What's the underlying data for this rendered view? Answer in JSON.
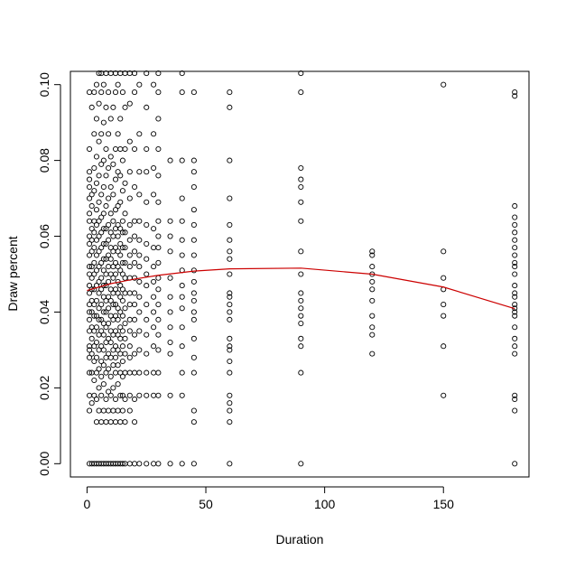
{
  "chart_data": {
    "type": "scatter",
    "title": "",
    "xlabel": "Duration",
    "ylabel": "Draw percent",
    "xlim": [
      -7,
      186
    ],
    "ylim": [
      -0.0035,
      0.1035
    ],
    "xticks": [
      0,
      50,
      100,
      150
    ],
    "yticks": [
      0.0,
      0.02,
      0.04,
      0.06,
      0.08,
      0.1
    ],
    "xtick_labels": [
      "0",
      "50",
      "100",
      "150"
    ],
    "ytick_labels": [
      "0.00",
      "0.02",
      "0.04",
      "0.06",
      "0.08",
      "0.10"
    ],
    "grid": false,
    "legend": "none",
    "points_color": "#000000",
    "trend_color": "#cc0000",
    "series": [
      {
        "kind": "points",
        "x_values": [
          1,
          2,
          3,
          4,
          5,
          6,
          7,
          8,
          9,
          10,
          11,
          12,
          13,
          14,
          15,
          16,
          18,
          20,
          22,
          25,
          28,
          30,
          35,
          40,
          45,
          60,
          90,
          120,
          150,
          180
        ],
        "x": [
          1,
          2,
          3,
          4,
          5,
          6,
          7,
          8,
          9,
          10,
          11,
          12,
          13,
          14,
          15,
          16,
          18,
          20,
          22,
          25,
          28,
          30,
          35,
          40,
          45,
          60,
          90,
          120,
          150,
          180
        ],
        "y_by_x": {
          "1": [
            0.0,
            0.014,
            0.018,
            0.024,
            0.028,
            0.03,
            0.031,
            0.035,
            0.038,
            0.04,
            0.042,
            0.045,
            0.047,
            0.05,
            0.052,
            0.055,
            0.058,
            0.06,
            0.064,
            0.066,
            0.07,
            0.073,
            0.075,
            0.077,
            0.083,
            0.098
          ],
          "2": [
            0.0,
            0.016,
            0.024,
            0.029,
            0.033,
            0.036,
            0.04,
            0.043,
            0.046,
            0.049,
            0.052,
            0.056,
            0.059,
            0.062,
            0.068,
            0.071,
            0.094
          ],
          "3": [
            0.0,
            0.018,
            0.022,
            0.027,
            0.031,
            0.035,
            0.039,
            0.042,
            0.046,
            0.05,
            0.053,
            0.057,
            0.061,
            0.064,
            0.072,
            0.078,
            0.087,
            0.098
          ],
          "4": [
            0.0,
            0.011,
            0.017,
            0.024,
            0.028,
            0.032,
            0.036,
            0.039,
            0.043,
            0.047,
            0.051,
            0.055,
            0.059,
            0.063,
            0.067,
            0.074,
            0.081,
            0.091,
            0.1
          ],
          "5": [
            0.0,
            0.014,
            0.02,
            0.025,
            0.03,
            0.034,
            0.038,
            0.041,
            0.045,
            0.048,
            0.052,
            0.056,
            0.06,
            0.064,
            0.069,
            0.076,
            0.085,
            0.095,
            0.103
          ],
          "6": [
            0.0,
            0.011,
            0.018,
            0.023,
            0.027,
            0.031,
            0.035,
            0.038,
            0.042,
            0.046,
            0.049,
            0.053,
            0.057,
            0.061,
            0.065,
            0.071,
            0.079,
            0.087,
            0.098,
            0.103
          ],
          "7": [
            0.0,
            0.014,
            0.021,
            0.026,
            0.03,
            0.034,
            0.037,
            0.04,
            0.044,
            0.047,
            0.051,
            0.054,
            0.058,
            0.062,
            0.066,
            0.073,
            0.08,
            0.09,
            0.1
          ],
          "8": [
            0.0,
            0.011,
            0.017,
            0.024,
            0.028,
            0.032,
            0.036,
            0.04,
            0.043,
            0.047,
            0.05,
            0.054,
            0.058,
            0.062,
            0.068,
            0.076,
            0.083,
            0.094,
            0.103
          ],
          "9": [
            0.0,
            0.014,
            0.019,
            0.025,
            0.029,
            0.033,
            0.037,
            0.041,
            0.044,
            0.048,
            0.052,
            0.055,
            0.059,
            0.063,
            0.07,
            0.078,
            0.087,
            0.098
          ],
          "10": [
            0.0,
            0.011,
            0.018,
            0.023,
            0.028,
            0.032,
            0.035,
            0.039,
            0.043,
            0.046,
            0.05,
            0.054,
            0.057,
            0.061,
            0.066,
            0.073,
            0.081,
            0.091,
            0.103
          ],
          "11": [
            0.0,
            0.014,
            0.02,
            0.026,
            0.03,
            0.034,
            0.038,
            0.042,
            0.045,
            0.049,
            0.052,
            0.056,
            0.06,
            0.064,
            0.071,
            0.079,
            0.094
          ],
          "12": [
            0.0,
            0.011,
            0.017,
            0.024,
            0.028,
            0.031,
            0.035,
            0.039,
            0.042,
            0.046,
            0.05,
            0.053,
            0.057,
            0.062,
            0.067,
            0.075,
            0.083,
            0.098,
            0.103
          ],
          "13": [
            0.0,
            0.014,
            0.021,
            0.026,
            0.03,
            0.034,
            0.038,
            0.041,
            0.045,
            0.048,
            0.052,
            0.056,
            0.06,
            0.063,
            0.068,
            0.077,
            0.087,
            0.1
          ],
          "14": [
            0.0,
            0.011,
            0.018,
            0.024,
            0.029,
            0.033,
            0.036,
            0.04,
            0.044,
            0.047,
            0.051,
            0.055,
            0.058,
            0.062,
            0.069,
            0.076,
            0.083,
            0.091,
            0.103
          ],
          "15": [
            0.0,
            0.014,
            0.018,
            0.023,
            0.027,
            0.031,
            0.035,
            0.039,
            0.043,
            0.046,
            0.05,
            0.053,
            0.057,
            0.061,
            0.064,
            0.072,
            0.08,
            0.098
          ],
          "16": [
            0.0,
            0.011,
            0.017,
            0.024,
            0.029,
            0.033,
            0.037,
            0.041,
            0.045,
            0.049,
            0.053,
            0.057,
            0.061,
            0.066,
            0.074,
            0.083,
            0.094,
            0.103
          ],
          "18": [
            0.0,
            0.014,
            0.018,
            0.024,
            0.028,
            0.031,
            0.035,
            0.038,
            0.042,
            0.045,
            0.049,
            0.052,
            0.055,
            0.059,
            0.063,
            0.07,
            0.077,
            0.085,
            0.095,
            0.103
          ],
          "20": [
            0.0,
            0.011,
            0.017,
            0.024,
            0.029,
            0.034,
            0.038,
            0.042,
            0.045,
            0.049,
            0.053,
            0.056,
            0.06,
            0.064,
            0.073,
            0.083,
            0.098,
            0.103
          ],
          "22": [
            0.0,
            0.018,
            0.024,
            0.03,
            0.035,
            0.04,
            0.044,
            0.048,
            0.052,
            0.055,
            0.059,
            0.064,
            0.071,
            0.077,
            0.087,
            0.1
          ],
          "25": [
            0.0,
            0.018,
            0.024,
            0.029,
            0.034,
            0.038,
            0.042,
            0.047,
            0.05,
            0.054,
            0.058,
            0.063,
            0.069,
            0.077,
            0.083,
            0.094,
            0.103
          ],
          "28": [
            0.0,
            0.018,
            0.024,
            0.031,
            0.036,
            0.04,
            0.044,
            0.048,
            0.052,
            0.057,
            0.062,
            0.071,
            0.078,
            0.087,
            0.1
          ],
          "30": [
            0.0,
            0.018,
            0.024,
            0.03,
            0.034,
            0.038,
            0.042,
            0.046,
            0.049,
            0.053,
            0.057,
            0.06,
            0.064,
            0.069,
            0.076,
            0.083,
            0.091,
            0.098,
            0.103
          ],
          "35": [
            0.0,
            0.018,
            0.029,
            0.032,
            0.036,
            0.04,
            0.044,
            0.049,
            0.056,
            0.06,
            0.064,
            0.08
          ],
          "40": [
            0.0,
            0.018,
            0.024,
            0.031,
            0.036,
            0.041,
            0.044,
            0.047,
            0.051,
            0.055,
            0.059,
            0.064,
            0.07,
            0.08,
            0.098,
            0.103
          ],
          "45": [
            0.0,
            0.011,
            0.014,
            0.024,
            0.028,
            0.033,
            0.038,
            0.04,
            0.043,
            0.045,
            0.048,
            0.051,
            0.055,
            0.059,
            0.063,
            0.067,
            0.073,
            0.077,
            0.08,
            0.098
          ],
          "60": [
            0.0,
            0.011,
            0.014,
            0.016,
            0.018,
            0.024,
            0.027,
            0.03,
            0.031,
            0.033,
            0.038,
            0.04,
            0.042,
            0.044,
            0.045,
            0.05,
            0.054,
            0.056,
            0.059,
            0.063,
            0.07,
            0.08,
            0.094,
            0.098
          ],
          "90": [
            0.0,
            0.024,
            0.031,
            0.033,
            0.037,
            0.039,
            0.041,
            0.043,
            0.045,
            0.05,
            0.056,
            0.064,
            0.069,
            0.073,
            0.075,
            0.078,
            0.098,
            0.103
          ],
          "120": [
            0.029,
            0.034,
            0.036,
            0.039,
            0.043,
            0.046,
            0.048,
            0.05,
            0.052,
            0.055,
            0.056
          ],
          "150": [
            0.018,
            0.031,
            0.039,
            0.042,
            0.046,
            0.049,
            0.056,
            0.1
          ],
          "180": [
            0.0,
            0.014,
            0.017,
            0.018,
            0.029,
            0.031,
            0.033,
            0.036,
            0.039,
            0.04,
            0.041,
            0.042,
            0.044,
            0.045,
            0.047,
            0.05,
            0.052,
            0.053,
            0.055,
            0.057,
            0.059,
            0.061,
            0.063,
            0.065,
            0.068,
            0.097,
            0.098
          ]
        }
      },
      {
        "kind": "line",
        "x": [
          0,
          10,
          20,
          30,
          45,
          60,
          90,
          120,
          150,
          180
        ],
        "y": [
          0.0457,
          0.0475,
          0.0487,
          0.0497,
          0.0508,
          0.0514,
          0.0516,
          0.05,
          0.0466,
          0.0409
        ]
      }
    ]
  }
}
